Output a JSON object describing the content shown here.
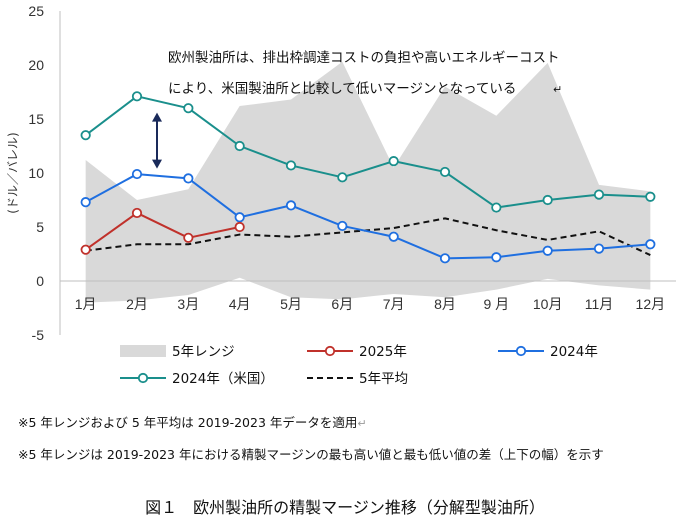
{
  "chart_data": {
    "type": "line",
    "ylabel": "(ドル／バレル)",
    "ylim": [
      -5,
      25
    ],
    "yticks": [
      25,
      20,
      15,
      10,
      5,
      0,
      -5
    ],
    "categories": [
      "1月",
      "2月",
      "3月",
      "4月",
      "5月",
      "6月",
      "7月",
      "8月",
      "9 月",
      "10月",
      "11月",
      "12月"
    ],
    "range": {
      "name": "5年レンジ",
      "color": "#d9d9d9",
      "upper": [
        11.2,
        7.5,
        8.5,
        16.2,
        16.8,
        20.3,
        10.5,
        18.0,
        15.3,
        20.2,
        8.9,
        8.3
      ],
      "lower": [
        -2.0,
        -1.8,
        -1.3,
        0.3,
        -1.5,
        -1.7,
        -1.2,
        -1.5,
        -0.8,
        0.2,
        -0.4,
        -0.8
      ]
    },
    "series": [
      {
        "name": "2025年",
        "color": "#c0312b",
        "style": "line-marker",
        "values": [
          2.9,
          6.3,
          4.0,
          5.0,
          null,
          null,
          null,
          null,
          null,
          null,
          null,
          null
        ]
      },
      {
        "name": "2024年",
        "color": "#1f6fe0",
        "style": "line-marker",
        "values": [
          7.3,
          9.9,
          9.5,
          5.9,
          7.0,
          5.1,
          4.1,
          2.1,
          2.2,
          2.8,
          3.0,
          3.4
        ]
      },
      {
        "name": "2024年（米国）",
        "color": "#1a8f8c",
        "style": "line-marker",
        "values": [
          13.5,
          17.1,
          16.0,
          12.5,
          10.7,
          9.6,
          11.1,
          10.1,
          6.8,
          7.5,
          8.0,
          7.8
        ]
      },
      {
        "name": "5年平均",
        "color": "#111111",
        "style": "dashed",
        "values": [
          2.8,
          3.4,
          3.4,
          4.3,
          4.1,
          4.5,
          4.9,
          5.8,
          4.7,
          3.8,
          4.6,
          2.4
        ]
      }
    ],
    "annotation": {
      "line1": "欧州製油所は、排出枠調達コストの負担や高いエネルギーコスト",
      "line2": "により、米国製油所と比較して低いマージンとなっている",
      "arrow_month": "2月",
      "arrow_from": 15.5,
      "arrow_to": 10.5
    },
    "legend_position": "bottom"
  },
  "notes": {
    "note1": "※5 年レンジおよび 5 年平均は 2019-2023 年データを適用",
    "note2": "※5 年レンジは 2019-2023 年における精製マージンの最も高い値と最も低い値の差（上下の幅）を示す",
    "return_mark": "↵"
  },
  "caption": "図１　欧州製油所の精製マージン推移（分解型製油所）"
}
